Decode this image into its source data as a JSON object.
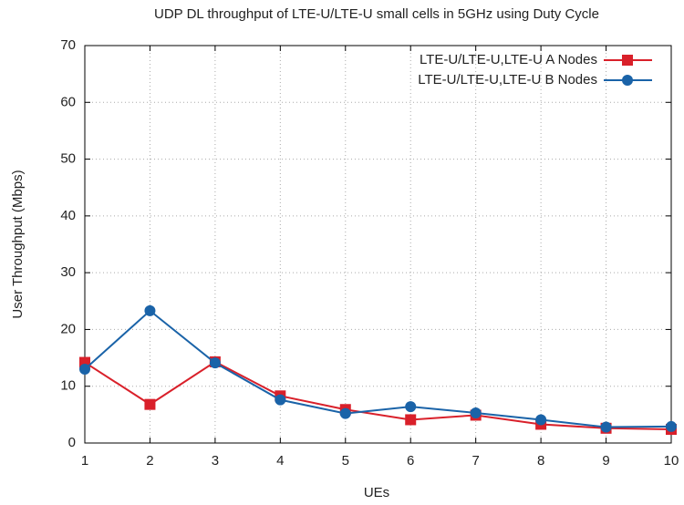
{
  "chart_data": {
    "type": "line",
    "title": "UDP DL throughput of LTE-U/LTE-U small cells in 5GHz using Duty Cycle",
    "xlabel": "UEs",
    "ylabel": "User Throughput (Mbps)",
    "x": [
      1,
      2,
      3,
      4,
      5,
      6,
      7,
      8,
      9,
      10
    ],
    "series": [
      {
        "name": "LTE-U/LTE-U,LTE-U A Nodes",
        "color": "#d9202a",
        "marker": "square",
        "values": [
          14.2,
          6.8,
          14.3,
          8.3,
          5.9,
          4.1,
          4.9,
          3.3,
          2.6,
          2.4
        ]
      },
      {
        "name": "LTE-U/LTE-U,LTE-U B Nodes",
        "color": "#1a63a8",
        "marker": "circle",
        "values": [
          13.0,
          23.3,
          14.1,
          7.6,
          5.2,
          6.4,
          5.3,
          4.1,
          2.8,
          2.9
        ]
      }
    ],
    "xlim": [
      1,
      10
    ],
    "xticks": [
      1,
      2,
      3,
      4,
      5,
      6,
      7,
      8,
      9,
      10
    ],
    "ylim": [
      0,
      70
    ],
    "yticks": [
      0,
      10,
      20,
      30,
      40,
      50,
      60,
      70
    ],
    "grid": true,
    "legend": "top-right"
  }
}
